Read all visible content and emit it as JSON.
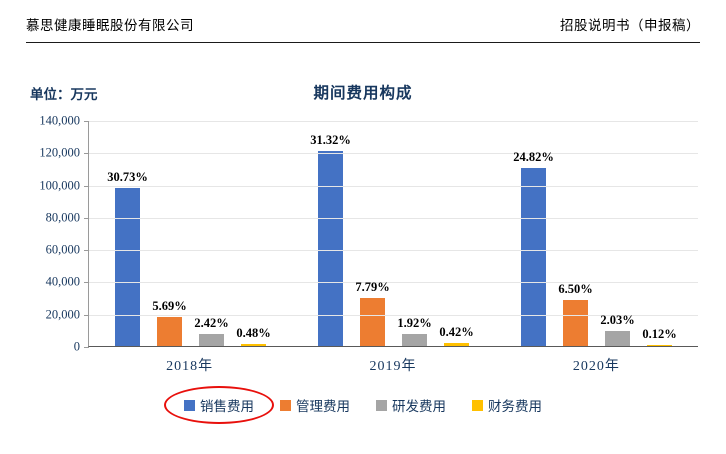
{
  "header": {
    "company_name": "慕思健康睡眠股份有限公司",
    "doc_label": "招股说明书（申报稿）"
  },
  "chart": {
    "unit_label": "单位：万元",
    "title": "期间费用构成"
  },
  "chart_data": {
    "type": "bar",
    "title": "期间费用构成",
    "unit": "万元",
    "categories": [
      "2018年",
      "2019年",
      "2020年"
    ],
    "series": [
      {
        "name": "销售费用",
        "color": "#4472C4",
        "values": [
          98000,
          121000,
          110000
        ],
        "percent_labels": [
          "30.73%",
          "31.32%",
          "24.82%"
        ]
      },
      {
        "name": "管理费用",
        "color": "#ED7D31",
        "values": [
          18000,
          30000,
          28500
        ],
        "percent_labels": [
          "5.69%",
          "7.79%",
          "6.50%"
        ]
      },
      {
        "name": "研发费用",
        "color": "#A5A5A5",
        "values": [
          7500,
          7400,
          9000
        ],
        "percent_labels": [
          "2.42%",
          "1.92%",
          "2.03%"
        ]
      },
      {
        "name": "财务费用",
        "color": "#FFC000",
        "values": [
          1500,
          1600,
          500
        ],
        "percent_labels": [
          "0.48%",
          "0.42%",
          "0.12%"
        ]
      }
    ],
    "y_axis": {
      "min": 0,
      "max": 140000,
      "tick_step": 20000
    },
    "y_tick_labels": [
      "140,000",
      "120,000",
      "100,000",
      "80,000",
      "60,000",
      "40,000",
      "20,000",
      "0"
    ],
    "grid": true,
    "legend_position": "bottom",
    "annotations": [
      {
        "type": "red-ellipse",
        "target_legend_series": "销售费用"
      }
    ]
  }
}
